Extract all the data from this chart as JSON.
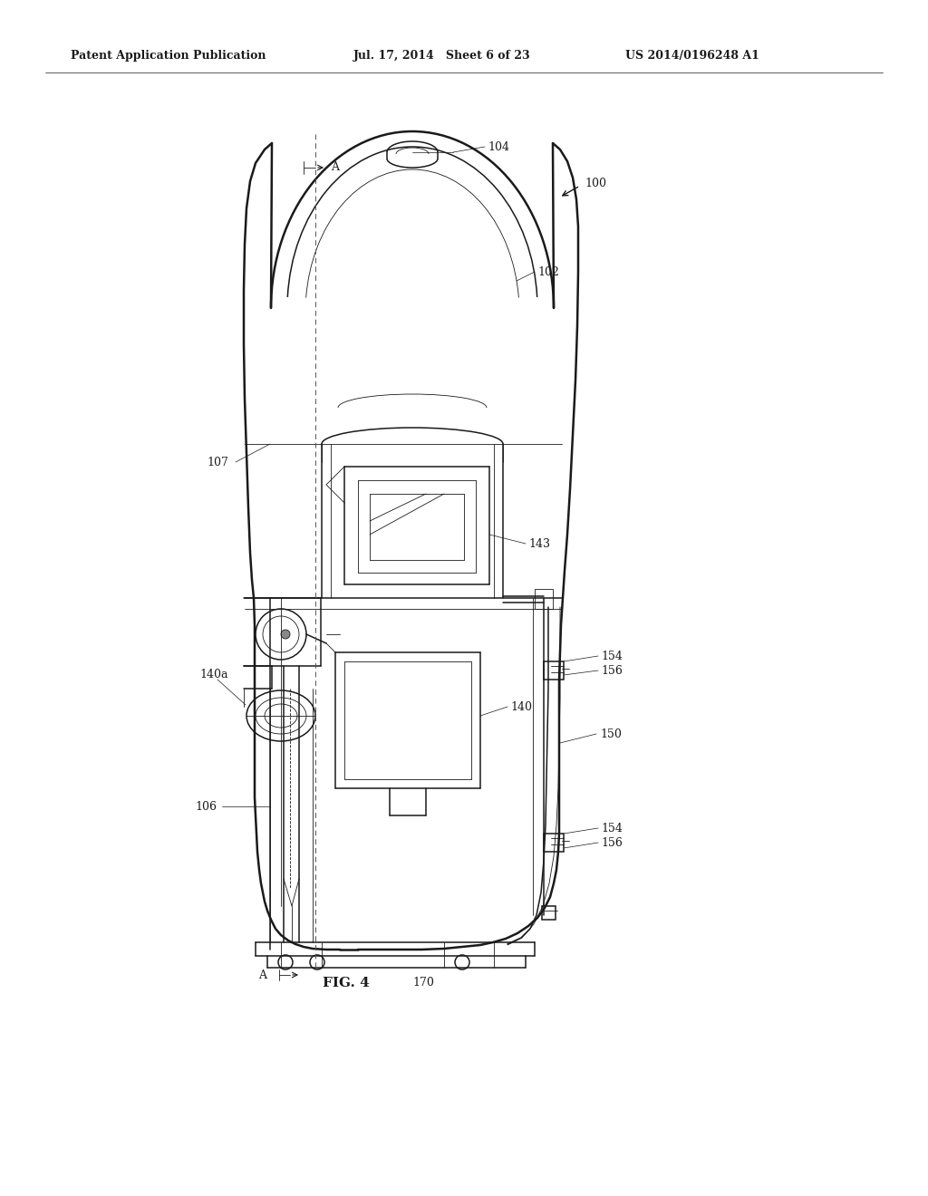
{
  "bg_color": "#ffffff",
  "line_color": "#1a1a1a",
  "header_left": "Patent Application Publication",
  "header_mid": "Jul. 17, 2014   Sheet 6 of 23",
  "header_right": "US 2014/0196248 A1",
  "fig_label": "FIG. 4",
  "lw_thick": 1.8,
  "lw_main": 1.1,
  "lw_thin": 0.6,
  "lw_hair": 0.4,
  "label_fs": 9,
  "header_fs": 9
}
